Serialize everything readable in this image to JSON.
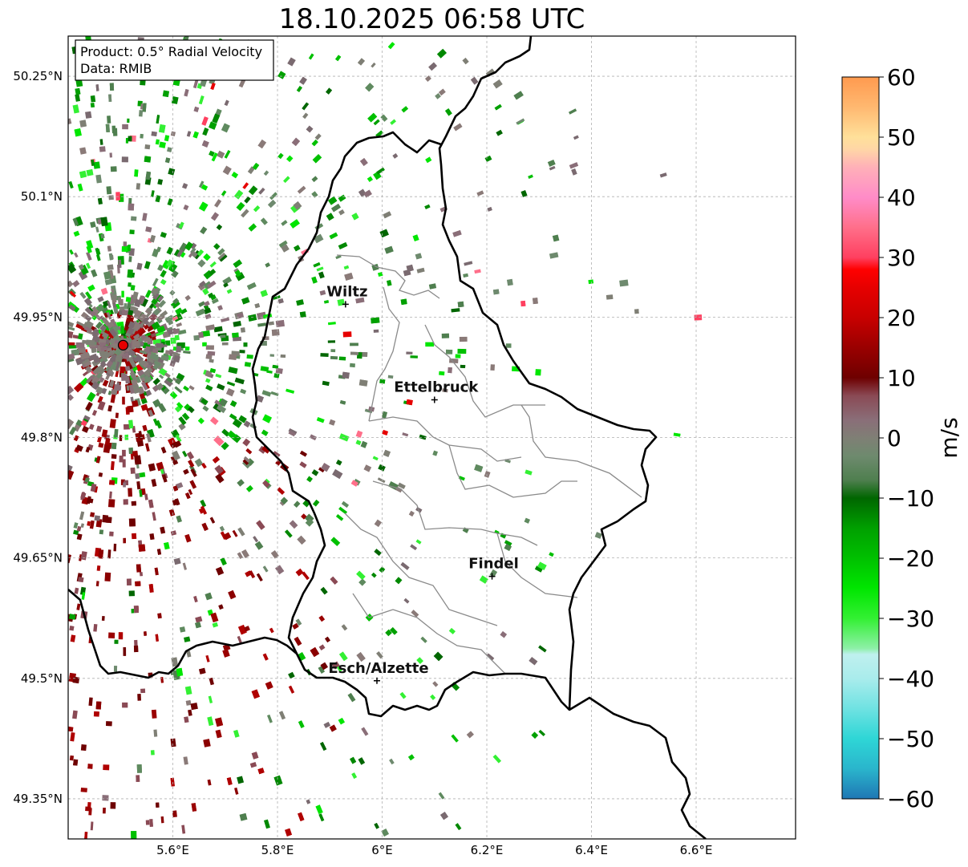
{
  "title": "18.10.2025 06:58 UTC",
  "info": {
    "product": "Product: 0.5° Radial Velocity",
    "data": "Data: RMIB"
  },
  "map": {
    "lon_range": [
      5.4,
      6.79
    ],
    "lat_range": [
      49.3,
      50.3
    ],
    "lat_ticks": [
      {
        "value": 50.25,
        "label": "50.25°N"
      },
      {
        "value": 50.1,
        "label": "50.1°N"
      },
      {
        "value": 49.95,
        "label": "49.95°N"
      },
      {
        "value": 49.8,
        "label": "49.8°N"
      },
      {
        "value": 49.65,
        "label": "49.65°N"
      },
      {
        "value": 49.5,
        "label": "49.5°N"
      },
      {
        "value": 49.35,
        "label": "49.35°N"
      }
    ],
    "lon_ticks": [
      {
        "value": 5.6,
        "label": "5.6°E"
      },
      {
        "value": 5.8,
        "label": "5.8°E"
      },
      {
        "value": 6.0,
        "label": "6°E"
      },
      {
        "value": 6.2,
        "label": "6.2°E"
      },
      {
        "value": 6.4,
        "label": "6.4°E"
      },
      {
        "value": 6.6,
        "label": "6.6°E"
      }
    ],
    "radar": {
      "lon": 5.505,
      "lat": 49.915,
      "marker_color": "#e60000"
    },
    "cities": [
      {
        "name": "Wiltz",
        "lon": 5.93,
        "lat": 49.966
      },
      {
        "name": "Ettelbruck",
        "lon": 6.1,
        "lat": 49.847
      },
      {
        "name": "Findel",
        "lon": 6.21,
        "lat": 49.627
      },
      {
        "name": "Esch/Alzette",
        "lon": 5.99,
        "lat": 49.497
      }
    ]
  },
  "colorbar": {
    "label": "m/s",
    "min": -60,
    "max": 60,
    "ticks": [
      {
        "value": 60,
        "label": "60"
      },
      {
        "value": 50,
        "label": "50"
      },
      {
        "value": 40,
        "label": "40"
      },
      {
        "value": 30,
        "label": "30"
      },
      {
        "value": 20,
        "label": "20"
      },
      {
        "value": 10,
        "label": "10"
      },
      {
        "value": 0,
        "label": "0"
      },
      {
        "value": -10,
        "label": "−10"
      },
      {
        "value": -20,
        "label": "−20"
      },
      {
        "value": -30,
        "label": "−30"
      },
      {
        "value": -40,
        "label": "−40"
      },
      {
        "value": -50,
        "label": "−50"
      },
      {
        "value": -60,
        "label": "−60"
      }
    ],
    "stops": [
      {
        "value": -60,
        "color": "#1f77b4"
      },
      {
        "value": -55,
        "color": "#2ab5cc"
      },
      {
        "value": -50,
        "color": "#2ed6d6"
      },
      {
        "value": -45,
        "color": "#6fe2e2"
      },
      {
        "value": -40,
        "color": "#a9ecec"
      },
      {
        "value": -36,
        "color": "#bff0ee"
      },
      {
        "value": -35,
        "color": "#8ef0a8"
      },
      {
        "value": -30,
        "color": "#33f033"
      },
      {
        "value": -25,
        "color": "#00e600"
      },
      {
        "value": -20,
        "color": "#00c000"
      },
      {
        "value": -15,
        "color": "#00a000"
      },
      {
        "value": -10,
        "color": "#006600"
      },
      {
        "value": -7,
        "color": "#4f7f4f"
      },
      {
        "value": -3,
        "color": "#6e8a6e"
      },
      {
        "value": 0,
        "color": "#7f7f75"
      },
      {
        "value": 3,
        "color": "#8a6e78"
      },
      {
        "value": 7,
        "color": "#8a4a55"
      },
      {
        "value": 10,
        "color": "#6e0000"
      },
      {
        "value": 15,
        "color": "#9a0000"
      },
      {
        "value": 20,
        "color": "#c80000"
      },
      {
        "value": 25,
        "color": "#e60000"
      },
      {
        "value": 28,
        "color": "#ff0000"
      },
      {
        "value": 30,
        "color": "#ff4060"
      },
      {
        "value": 35,
        "color": "#ff6f8a"
      },
      {
        "value": 40,
        "color": "#ff8cc8"
      },
      {
        "value": 45,
        "color": "#ffb0b8"
      },
      {
        "value": 48,
        "color": "#ffd6a6"
      },
      {
        "value": 50,
        "color": "#ffe09a"
      },
      {
        "value": 55,
        "color": "#ffb870"
      },
      {
        "value": 60,
        "color": "#ff9a4f"
      }
    ]
  },
  "colors": {
    "border": "#000000",
    "canton_lines": "#8a8a8a",
    "grid": "#b0b0b0"
  }
}
